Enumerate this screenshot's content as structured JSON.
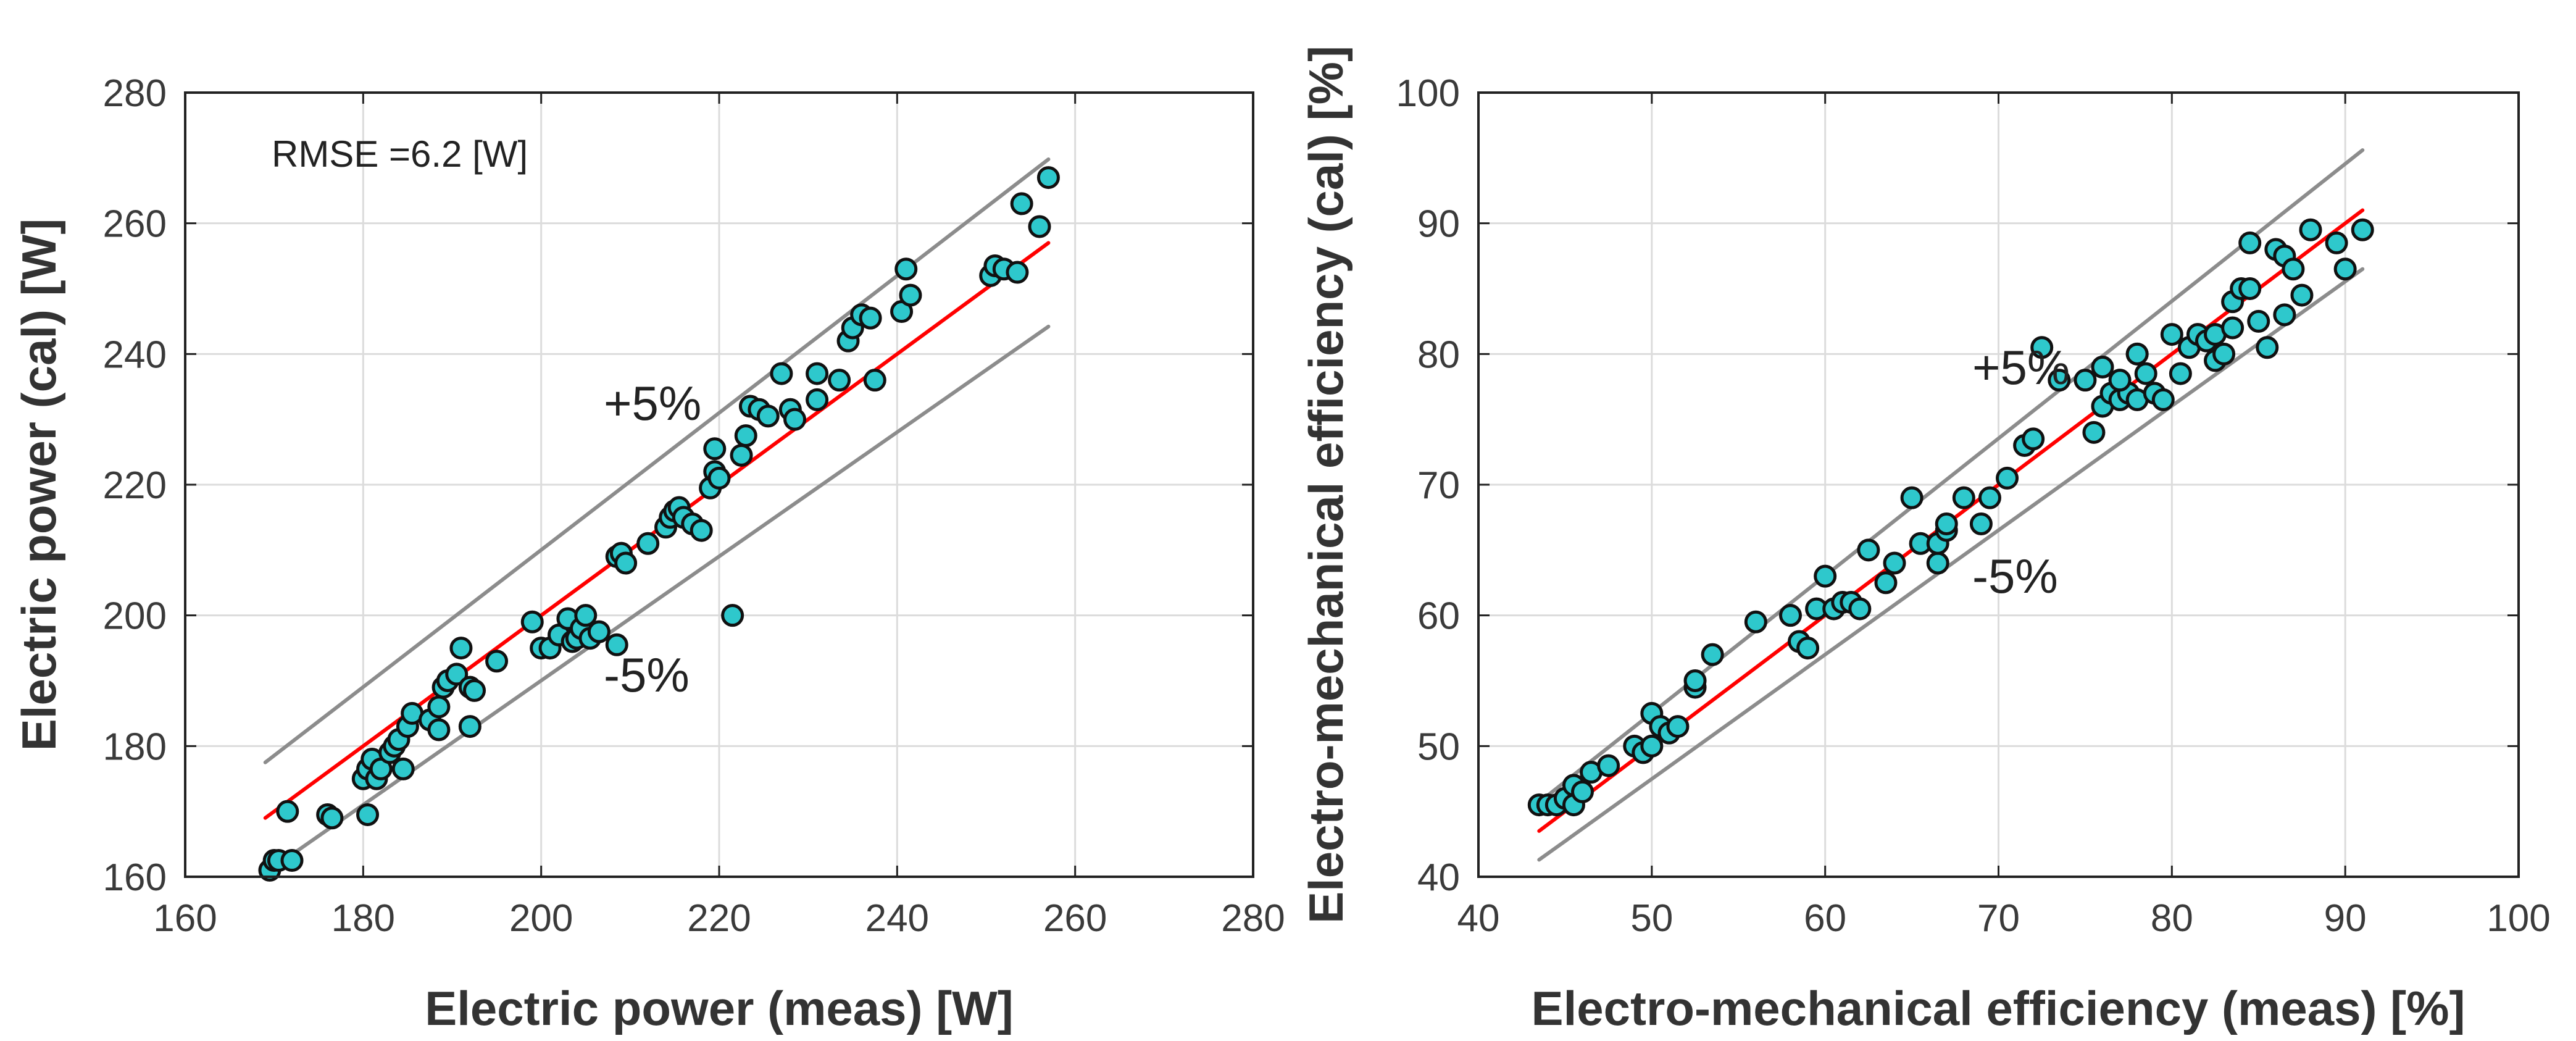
{
  "chart_data": [
    {
      "type": "scatter",
      "xlabel": "Electric power (meas) [W]",
      "ylabel": "Electric power (cal) [W]",
      "xlim": [
        160,
        280
      ],
      "ylim": [
        160,
        280
      ],
      "xticks": [
        160,
        180,
        200,
        220,
        240,
        260,
        280
      ],
      "yticks": [
        160,
        180,
        200,
        220,
        240,
        260,
        280
      ],
      "grid": true,
      "annotations": {
        "rmse": "RMSE =6.2 [W]",
        "upper": "+5%",
        "lower": "-5%"
      },
      "colors": {
        "marker_fill": "#2ec8cc",
        "marker_edge": "#111111",
        "identity_line": "#ff0000",
        "bound_lines": "#8c8c8c"
      },
      "lines": {
        "identity": {
          "x": [
            169,
            257
          ],
          "y": [
            169,
            257
          ]
        },
        "upper": {
          "x": [
            169,
            257
          ],
          "y": [
            177.5,
            269.8
          ]
        },
        "lower": {
          "x": [
            172,
            257
          ],
          "y": [
            163.4,
            244.2
          ]
        }
      },
      "series": [
        {
          "x": [
            169.5,
            170.0,
            170.5,
            172.0,
            171.5,
            176.0,
            176.5,
            180.5,
            180.0,
            180.5,
            181.0,
            181.5,
            182.0,
            183.0,
            183.5,
            184.5,
            184.0,
            185.0,
            185.5,
            187.5,
            188.5,
            188.5,
            189.0,
            189.5,
            190.5,
            191.0,
            192.0,
            192.0,
            192.5,
            195.0,
            199.0,
            200.0,
            201.0,
            202.0,
            203.0,
            203.5,
            204.0,
            204.5,
            205.0,
            205.5,
            206.5,
            208.5,
            208.5,
            209.0,
            209.5,
            212.0,
            214.0,
            214.5,
            215.0,
            215.5,
            216.0,
            217.0,
            218.0,
            219.0,
            219.5,
            219.5,
            220.0,
            221.5,
            222.5,
            223.0,
            223.5,
            224.5,
            225.5,
            227.0,
            228.0,
            228.5,
            231.0,
            231.0,
            233.5,
            234.5,
            235.0,
            236.0,
            237.0,
            237.5,
            240.5,
            241.0,
            241.5,
            250.5,
            251.0,
            252.0,
            253.5,
            254.0,
            256.0,
            257.0
          ],
          "y": [
            161.0,
            162.5,
            162.5,
            162.5,
            170.0,
            169.5,
            169.0,
            169.5,
            175.0,
            176.5,
            178.0,
            175.0,
            176.5,
            179.0,
            180.0,
            176.5,
            181.0,
            183.0,
            185.0,
            184.0,
            182.5,
            186.0,
            189.0,
            190.0,
            191.0,
            195.0,
            189.0,
            183.0,
            188.5,
            193.0,
            199.0,
            195.0,
            195.0,
            197.0,
            199.5,
            196.0,
            196.5,
            198.0,
            200.0,
            196.5,
            197.5,
            195.5,
            209.0,
            209.5,
            208.0,
            211.0,
            213.5,
            215.0,
            216.0,
            216.5,
            215.0,
            214.0,
            213.0,
            219.5,
            225.5,
            222.0,
            221.0,
            200.0,
            224.5,
            227.5,
            232.0,
            231.5,
            230.5,
            237.0,
            231.5,
            230.0,
            233.0,
            237.0,
            236.0,
            242.0,
            244.0,
            246.0,
            245.5,
            236.0,
            246.5,
            253.0,
            249.0,
            252.0,
            253.5,
            253.0,
            252.5,
            263.0,
            259.5,
            267.0
          ]
        }
      ]
    },
    {
      "type": "scatter",
      "xlabel": "Electro-mechanical efficiency (meas) [%]",
      "ylabel": "Electro-mechanical efficiency (cal) [%]",
      "xlim": [
        40,
        100
      ],
      "ylim": [
        40,
        100
      ],
      "xticks": [
        40,
        50,
        60,
        70,
        80,
        90,
        100
      ],
      "yticks": [
        40,
        50,
        60,
        70,
        80,
        90,
        100
      ],
      "grid": true,
      "annotations": {
        "upper": "+5%",
        "lower": "-5%"
      },
      "colors": {
        "marker_fill": "#2ec8cc",
        "marker_edge": "#111111",
        "identity_line": "#ff0000",
        "bound_lines": "#8c8c8c"
      },
      "lines": {
        "identity": {
          "x": [
            43.5,
            91
          ],
          "y": [
            43.5,
            91
          ]
        },
        "upper": {
          "x": [
            43.5,
            91
          ],
          "y": [
            45.7,
            95.6
          ]
        },
        "lower": {
          "x": [
            43.5,
            91
          ],
          "y": [
            41.3,
            86.5
          ]
        }
      },
      "series": [
        {
          "x": [
            43.5,
            44.0,
            44.5,
            45.0,
            45.5,
            45.5,
            46.0,
            46.5,
            47.5,
            49.0,
            49.5,
            50.0,
            50.0,
            50.5,
            51.0,
            51.5,
            52.5,
            52.5,
            53.5,
            56.0,
            58.0,
            58.5,
            59.0,
            59.5,
            60.0,
            60.5,
            61.0,
            61.5,
            62.0,
            62.5,
            63.5,
            64.0,
            65.0,
            65.5,
            66.5,
            66.5,
            67.0,
            67.0,
            68.0,
            69.0,
            69.5,
            70.5,
            71.5,
            72.0,
            72.5,
            73.5,
            75.5,
            76.0,
            76.5,
            77.0,
            77.5,
            78.0,
            78.0,
            78.5,
            79.0,
            79.5,
            80.0,
            80.5,
            81.0,
            81.5,
            82.0,
            82.5,
            82.5,
            83.0,
            83.5,
            83.5,
            84.0,
            84.5,
            84.5,
            85.0,
            85.5,
            86.0,
            86.5,
            86.5,
            87.0,
            87.5,
            88.0,
            89.5,
            90.0,
            91.0,
            75.0,
            76.0,
            77.0,
            78.0
          ],
          "y": [
            45.5,
            45.5,
            45.5,
            46.0,
            45.5,
            47.0,
            46.5,
            48.0,
            48.5,
            50.0,
            49.5,
            50.0,
            52.5,
            51.5,
            51.0,
            51.5,
            54.5,
            55.0,
            57.0,
            59.5,
            60.0,
            58.0,
            57.5,
            60.5,
            63.0,
            60.5,
            61.0,
            61.0,
            60.5,
            65.0,
            62.5,
            64.0,
            69.0,
            65.5,
            64.0,
            65.5,
            66.5,
            67.0,
            69.0,
            67.0,
            69.0,
            70.5,
            73.0,
            73.5,
            80.5,
            78.0,
            74.0,
            76.0,
            77.0,
            76.5,
            77.0,
            76.5,
            80.0,
            78.5,
            77.0,
            76.5,
            81.5,
            78.5,
            80.5,
            81.5,
            81.0,
            79.5,
            81.5,
            80.0,
            82.0,
            84.0,
            85.0,
            88.5,
            85.0,
            82.5,
            80.5,
            88.0,
            87.5,
            83.0,
            86.5,
            84.5,
            89.5,
            88.5,
            86.5,
            89.5,
            78.0,
            79.0,
            78.0,
            80.0
          ]
        }
      ]
    }
  ],
  "colors": {
    "grid": "#dcdcdc",
    "axes": "#222222",
    "tick_text": "#3a3a3a"
  }
}
